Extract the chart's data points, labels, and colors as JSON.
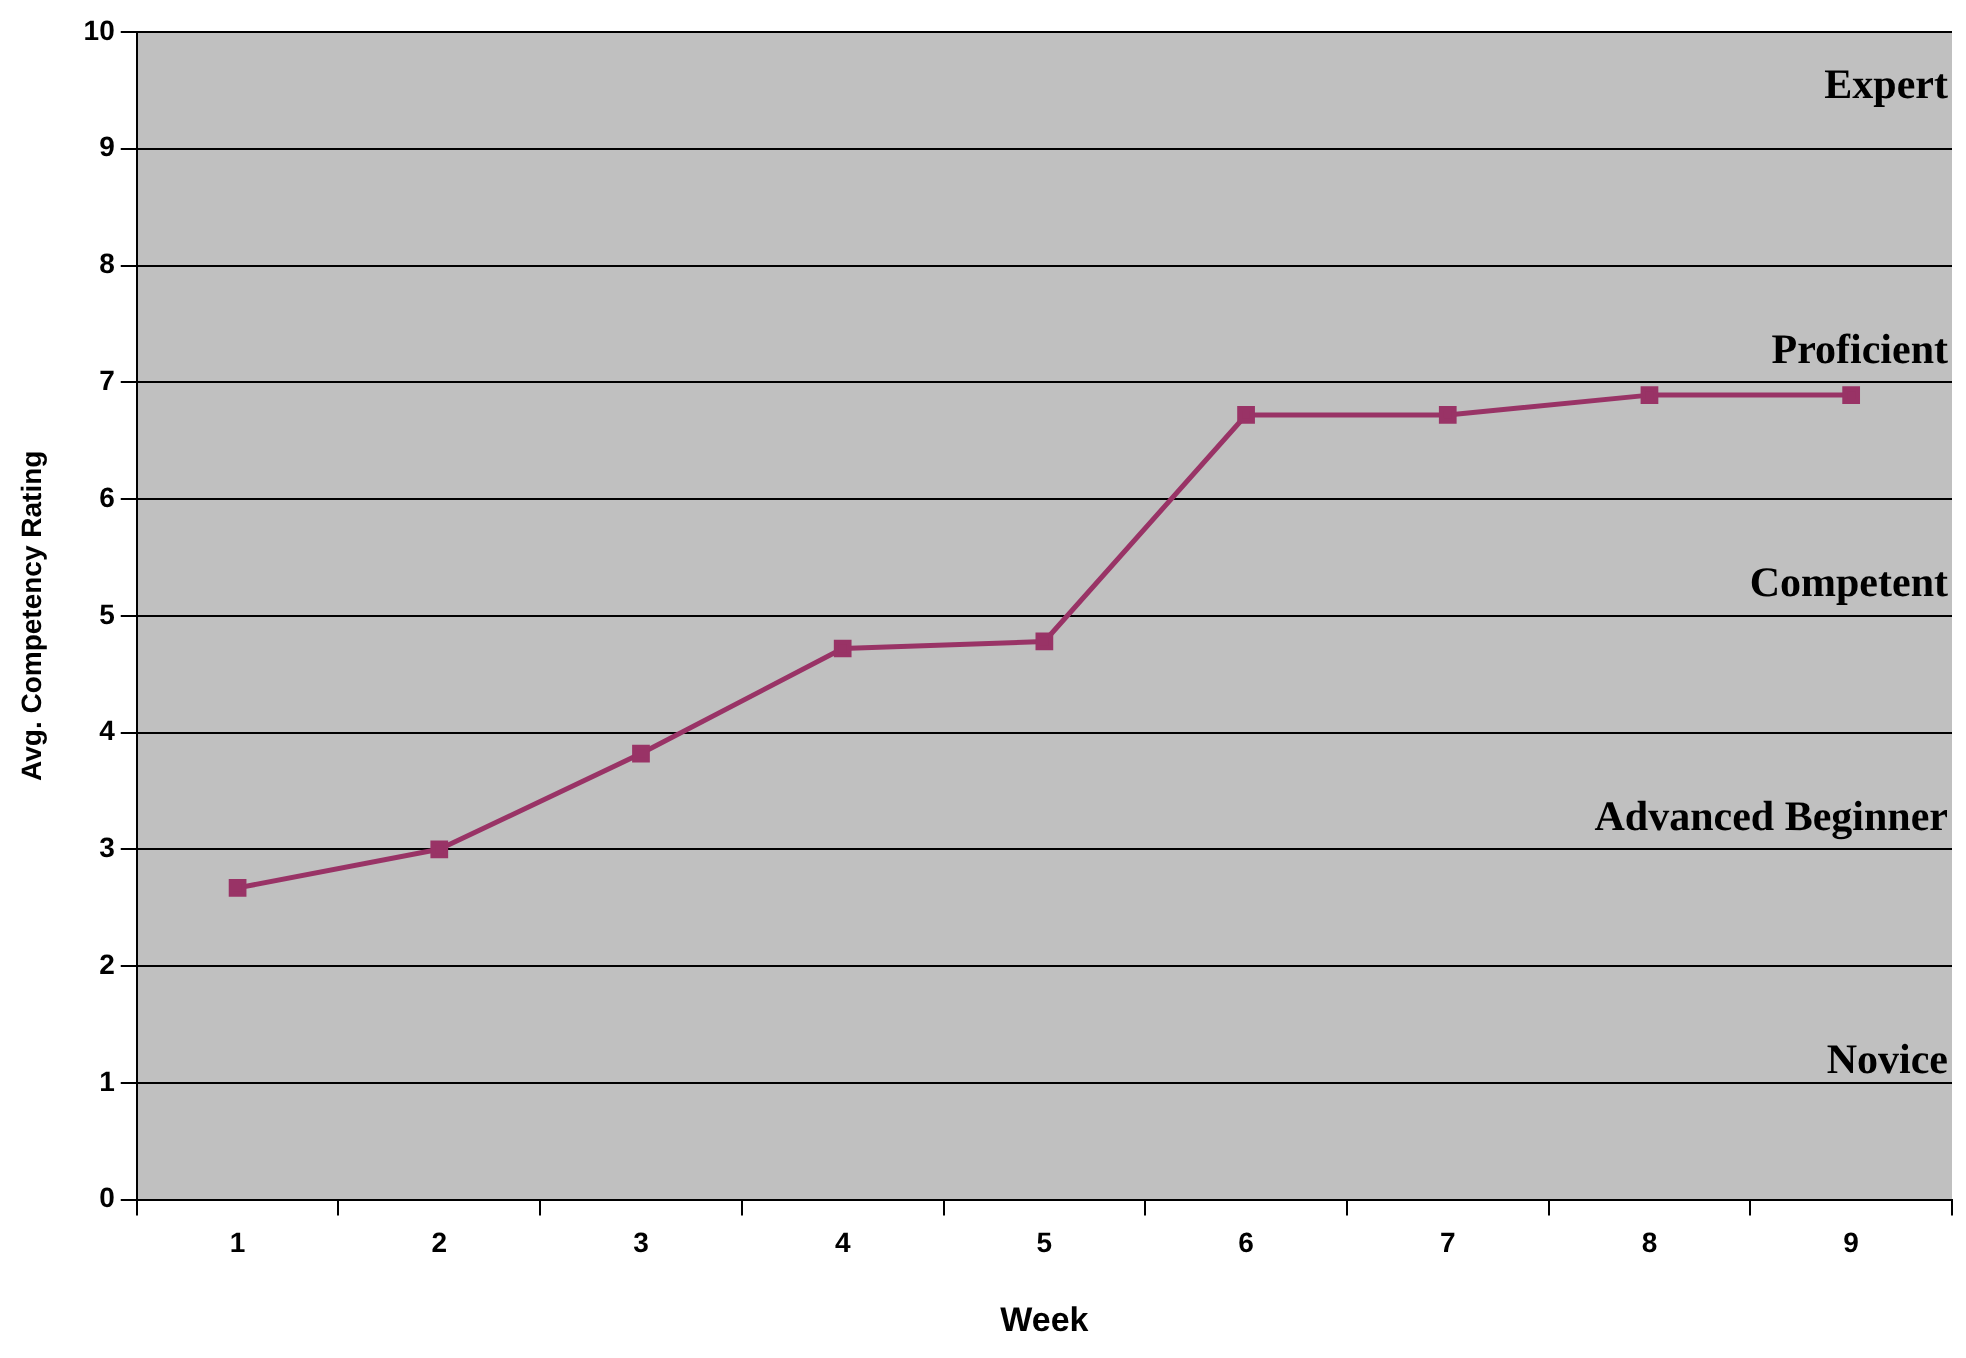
{
  "chart_data": {
    "type": "line",
    "xlabel": "Week",
    "ylabel": "Avg. Competency Rating",
    "categories": [
      "1",
      "2",
      "3",
      "4",
      "5",
      "6",
      "7",
      "8",
      "9"
    ],
    "series": [
      {
        "color": "#993366",
        "values": [
          2.67,
          3.0,
          3.82,
          4.72,
          4.78,
          6.72,
          6.72,
          6.89,
          6.89
        ]
      }
    ],
    "ylim": [
      0,
      10
    ],
    "yticks": [
      0,
      1,
      2,
      3,
      4,
      5,
      6,
      7,
      8,
      9,
      10
    ],
    "grid": "y",
    "legend": false,
    "marker": "square",
    "line_style": "solid",
    "annotations": [
      "Expert",
      "Proficient",
      "Competent",
      "Advanced Beginner",
      "Novice"
    ]
  }
}
